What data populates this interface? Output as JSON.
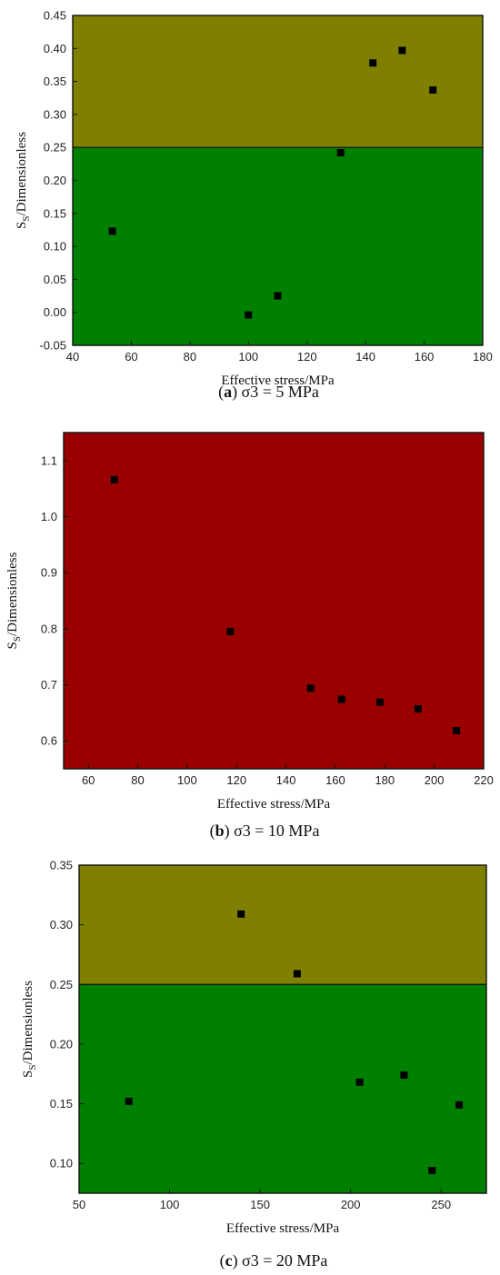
{
  "chart_data": [
    {
      "type": "scatter",
      "caption_letter": "a",
      "caption_text": "σ3 = 5 MPa",
      "xlabel": "Effective stress/MPa",
      "ylabel_main": "S",
      "ylabel_sub": "S",
      "ylabel_rest": "/Dimensionless",
      "xlim": [
        40,
        180
      ],
      "ylim": [
        -0.05,
        0.45
      ],
      "xticks": [
        40,
        60,
        80,
        100,
        120,
        140,
        160,
        180
      ],
      "yticks": [
        -0.05,
        0.0,
        0.05,
        0.1,
        0.15,
        0.2,
        0.25,
        0.3,
        0.35,
        0.4,
        0.45
      ],
      "ydecimals": 2,
      "bands": [
        {
          "from": 0.25,
          "to": 0.45,
          "color": "#808000"
        },
        {
          "from": -0.05,
          "to": 0.25,
          "color": "#008000"
        }
      ],
      "threshold": 0.25,
      "points": [
        {
          "x": 53.5,
          "y": 0.123
        },
        {
          "x": 100,
          "y": -0.004
        },
        {
          "x": 110,
          "y": 0.025
        },
        {
          "x": 131.5,
          "y": 0.242
        },
        {
          "x": 142.5,
          "y": 0.378
        },
        {
          "x": 152.5,
          "y": 0.397
        },
        {
          "x": 163,
          "y": 0.337
        }
      ]
    },
    {
      "type": "scatter",
      "caption_letter": "b",
      "caption_text": "σ3 = 10 MPa",
      "xlabel": "Effective stress/MPa",
      "ylabel_main": "S",
      "ylabel_sub": "S",
      "ylabel_rest": "/Dimensionless",
      "xlim": [
        50,
        220
      ],
      "ylim": [
        0.55,
        1.15
      ],
      "xticks": [
        60,
        80,
        100,
        120,
        140,
        160,
        180,
        200,
        220
      ],
      "yticks": [
        0.6,
        0.7,
        0.8,
        0.9,
        1.0,
        1.1
      ],
      "ydecimals": 1,
      "bands": [
        {
          "from": 0.55,
          "to": 1.15,
          "color": "#990000"
        }
      ],
      "threshold": null,
      "points": [
        {
          "x": 70.5,
          "y": 1.066
        },
        {
          "x": 117.5,
          "y": 0.795
        },
        {
          "x": 150,
          "y": 0.694
        },
        {
          "x": 162.5,
          "y": 0.674
        },
        {
          "x": 178,
          "y": 0.669
        },
        {
          "x": 193.5,
          "y": 0.657
        },
        {
          "x": 209,
          "y": 0.618
        }
      ]
    },
    {
      "type": "scatter",
      "caption_letter": "c",
      "caption_text": "σ3 = 20 MPa",
      "xlabel": "Effective stress/MPa",
      "ylabel_main": "S",
      "ylabel_sub": "S",
      "ylabel_rest": "/Dimensionless",
      "xlim": [
        50,
        275
      ],
      "ylim": [
        0.075,
        0.35
      ],
      "xticks": [
        50,
        100,
        150,
        200,
        250
      ],
      "yticks": [
        0.1,
        0.15,
        0.2,
        0.25,
        0.3,
        0.35
      ],
      "ydecimals": 2,
      "bands": [
        {
          "from": 0.25,
          "to": 0.35,
          "color": "#808000"
        },
        {
          "from": 0.075,
          "to": 0.25,
          "color": "#008000"
        }
      ],
      "threshold": 0.25,
      "points": [
        {
          "x": 77.5,
          "y": 0.152
        },
        {
          "x": 139.5,
          "y": 0.309
        },
        {
          "x": 170.5,
          "y": 0.259
        },
        {
          "x": 205,
          "y": 0.168
        },
        {
          "x": 229.5,
          "y": 0.174
        },
        {
          "x": 245,
          "y": 0.094
        },
        {
          "x": 260,
          "y": 0.149
        }
      ]
    }
  ]
}
